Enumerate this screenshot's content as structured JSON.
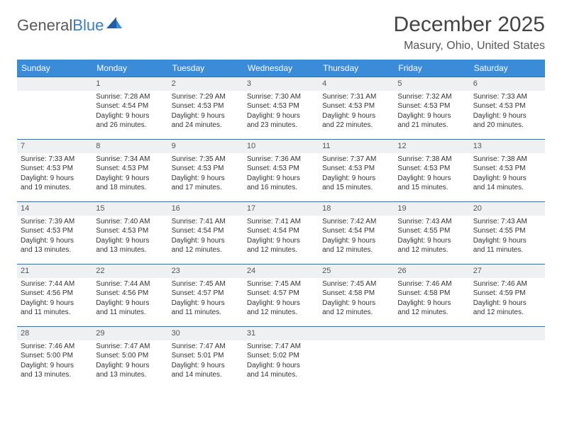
{
  "brand": {
    "name_a": "General",
    "name_b": "Blue"
  },
  "title": "December 2025",
  "location": "Masury, Ohio, United States",
  "colors": {
    "header_bg": "#3a8bd8",
    "header_text": "#ffffff",
    "daynum_bg": "#eef0f2",
    "daynum_border": "#3a6fa8",
    "text": "#333333",
    "brand_gray": "#5a5a5a",
    "brand_blue": "#3a7fc4"
  },
  "weekdays": [
    "Sunday",
    "Monday",
    "Tuesday",
    "Wednesday",
    "Thursday",
    "Friday",
    "Saturday"
  ],
  "weeks": [
    [
      null,
      {
        "n": "1",
        "sr": "Sunrise: 7:28 AM",
        "ss": "Sunset: 4:54 PM",
        "d1": "Daylight: 9 hours",
        "d2": "and 26 minutes."
      },
      {
        "n": "2",
        "sr": "Sunrise: 7:29 AM",
        "ss": "Sunset: 4:53 PM",
        "d1": "Daylight: 9 hours",
        "d2": "and 24 minutes."
      },
      {
        "n": "3",
        "sr": "Sunrise: 7:30 AM",
        "ss": "Sunset: 4:53 PM",
        "d1": "Daylight: 9 hours",
        "d2": "and 23 minutes."
      },
      {
        "n": "4",
        "sr": "Sunrise: 7:31 AM",
        "ss": "Sunset: 4:53 PM",
        "d1": "Daylight: 9 hours",
        "d2": "and 22 minutes."
      },
      {
        "n": "5",
        "sr": "Sunrise: 7:32 AM",
        "ss": "Sunset: 4:53 PM",
        "d1": "Daylight: 9 hours",
        "d2": "and 21 minutes."
      },
      {
        "n": "6",
        "sr": "Sunrise: 7:33 AM",
        "ss": "Sunset: 4:53 PM",
        "d1": "Daylight: 9 hours",
        "d2": "and 20 minutes."
      }
    ],
    [
      {
        "n": "7",
        "sr": "Sunrise: 7:33 AM",
        "ss": "Sunset: 4:53 PM",
        "d1": "Daylight: 9 hours",
        "d2": "and 19 minutes."
      },
      {
        "n": "8",
        "sr": "Sunrise: 7:34 AM",
        "ss": "Sunset: 4:53 PM",
        "d1": "Daylight: 9 hours",
        "d2": "and 18 minutes."
      },
      {
        "n": "9",
        "sr": "Sunrise: 7:35 AM",
        "ss": "Sunset: 4:53 PM",
        "d1": "Daylight: 9 hours",
        "d2": "and 17 minutes."
      },
      {
        "n": "10",
        "sr": "Sunrise: 7:36 AM",
        "ss": "Sunset: 4:53 PM",
        "d1": "Daylight: 9 hours",
        "d2": "and 16 minutes."
      },
      {
        "n": "11",
        "sr": "Sunrise: 7:37 AM",
        "ss": "Sunset: 4:53 PM",
        "d1": "Daylight: 9 hours",
        "d2": "and 15 minutes."
      },
      {
        "n": "12",
        "sr": "Sunrise: 7:38 AM",
        "ss": "Sunset: 4:53 PM",
        "d1": "Daylight: 9 hours",
        "d2": "and 15 minutes."
      },
      {
        "n": "13",
        "sr": "Sunrise: 7:38 AM",
        "ss": "Sunset: 4:53 PM",
        "d1": "Daylight: 9 hours",
        "d2": "and 14 minutes."
      }
    ],
    [
      {
        "n": "14",
        "sr": "Sunrise: 7:39 AM",
        "ss": "Sunset: 4:53 PM",
        "d1": "Daylight: 9 hours",
        "d2": "and 13 minutes."
      },
      {
        "n": "15",
        "sr": "Sunrise: 7:40 AM",
        "ss": "Sunset: 4:53 PM",
        "d1": "Daylight: 9 hours",
        "d2": "and 13 minutes."
      },
      {
        "n": "16",
        "sr": "Sunrise: 7:41 AM",
        "ss": "Sunset: 4:54 PM",
        "d1": "Daylight: 9 hours",
        "d2": "and 12 minutes."
      },
      {
        "n": "17",
        "sr": "Sunrise: 7:41 AM",
        "ss": "Sunset: 4:54 PM",
        "d1": "Daylight: 9 hours",
        "d2": "and 12 minutes."
      },
      {
        "n": "18",
        "sr": "Sunrise: 7:42 AM",
        "ss": "Sunset: 4:54 PM",
        "d1": "Daylight: 9 hours",
        "d2": "and 12 minutes."
      },
      {
        "n": "19",
        "sr": "Sunrise: 7:43 AM",
        "ss": "Sunset: 4:55 PM",
        "d1": "Daylight: 9 hours",
        "d2": "and 12 minutes."
      },
      {
        "n": "20",
        "sr": "Sunrise: 7:43 AM",
        "ss": "Sunset: 4:55 PM",
        "d1": "Daylight: 9 hours",
        "d2": "and 11 minutes."
      }
    ],
    [
      {
        "n": "21",
        "sr": "Sunrise: 7:44 AM",
        "ss": "Sunset: 4:56 PM",
        "d1": "Daylight: 9 hours",
        "d2": "and 11 minutes."
      },
      {
        "n": "22",
        "sr": "Sunrise: 7:44 AM",
        "ss": "Sunset: 4:56 PM",
        "d1": "Daylight: 9 hours",
        "d2": "and 11 minutes."
      },
      {
        "n": "23",
        "sr": "Sunrise: 7:45 AM",
        "ss": "Sunset: 4:57 PM",
        "d1": "Daylight: 9 hours",
        "d2": "and 11 minutes."
      },
      {
        "n": "24",
        "sr": "Sunrise: 7:45 AM",
        "ss": "Sunset: 4:57 PM",
        "d1": "Daylight: 9 hours",
        "d2": "and 12 minutes."
      },
      {
        "n": "25",
        "sr": "Sunrise: 7:45 AM",
        "ss": "Sunset: 4:58 PM",
        "d1": "Daylight: 9 hours",
        "d2": "and 12 minutes."
      },
      {
        "n": "26",
        "sr": "Sunrise: 7:46 AM",
        "ss": "Sunset: 4:58 PM",
        "d1": "Daylight: 9 hours",
        "d2": "and 12 minutes."
      },
      {
        "n": "27",
        "sr": "Sunrise: 7:46 AM",
        "ss": "Sunset: 4:59 PM",
        "d1": "Daylight: 9 hours",
        "d2": "and 12 minutes."
      }
    ],
    [
      {
        "n": "28",
        "sr": "Sunrise: 7:46 AM",
        "ss": "Sunset: 5:00 PM",
        "d1": "Daylight: 9 hours",
        "d2": "and 13 minutes."
      },
      {
        "n": "29",
        "sr": "Sunrise: 7:47 AM",
        "ss": "Sunset: 5:00 PM",
        "d1": "Daylight: 9 hours",
        "d2": "and 13 minutes."
      },
      {
        "n": "30",
        "sr": "Sunrise: 7:47 AM",
        "ss": "Sunset: 5:01 PM",
        "d1": "Daylight: 9 hours",
        "d2": "and 14 minutes."
      },
      {
        "n": "31",
        "sr": "Sunrise: 7:47 AM",
        "ss": "Sunset: 5:02 PM",
        "d1": "Daylight: 9 hours",
        "d2": "and 14 minutes."
      },
      null,
      null,
      null
    ]
  ]
}
